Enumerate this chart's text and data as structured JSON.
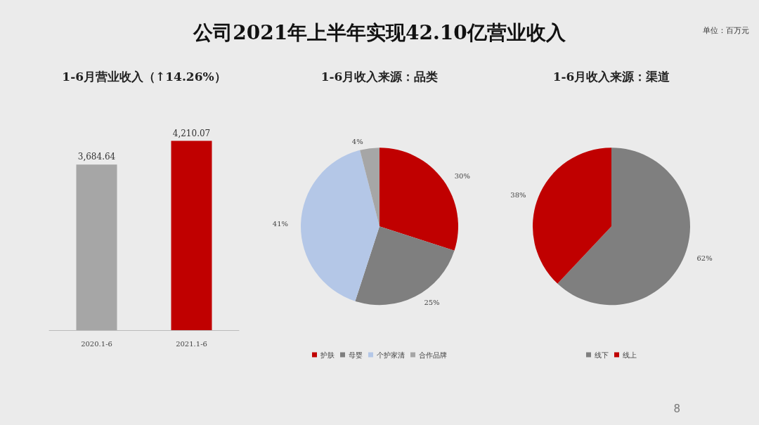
{
  "chart_data": [
    {
      "type": "other",
      "title": "公司2021年上半年实现42.10亿营业收入",
      "annotations": [
        "单位：百万元",
        "8"
      ]
    },
    {
      "type": "bar",
      "title": "1-6月营业收入（↑14.26%）",
      "categories": [
        "2020.1-6",
        "2021.1-6"
      ],
      "values": [
        3684.64,
        4210.07
      ],
      "colors": [
        "#a6a6a6",
        "#c00000"
      ],
      "value_labels": [
        "3,684.64",
        "4,210.07"
      ]
    },
    {
      "type": "pie",
      "title": "1-6月收入来源：品类",
      "legend": "bottom",
      "categories": [
        "护肤",
        "母婴",
        "个护家清",
        "合作品牌"
      ],
      "values": [
        30,
        25,
        41,
        4
      ],
      "colors": [
        "#c00000",
        "#7f7f7f",
        "#b4c7e7",
        "#a6a6a6"
      ],
      "value_labels": [
        "30%",
        "25%",
        "41%",
        "4%"
      ]
    },
    {
      "type": "pie",
      "title": "1-6月收入来源：渠道",
      "legend": "bottom",
      "categories": [
        "线下",
        "线上"
      ],
      "values": [
        62,
        38
      ],
      "colors": [
        "#7f7f7f",
        "#c00000"
      ],
      "value_labels": [
        "62%",
        "38%"
      ]
    }
  ]
}
